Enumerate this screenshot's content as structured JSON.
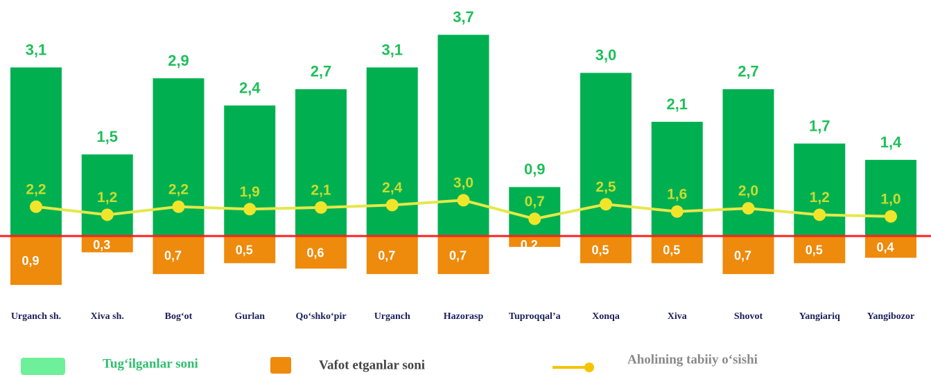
{
  "chart_data": {
    "type": "bar",
    "categories": [
      "Urganch sh.",
      "Xiva sh.",
      "Bog‘ot",
      "Gurlan",
      "Qo‘shko‘pir",
      "Urganch",
      "Hazorasp",
      "Tuproqqal’a",
      "Xonqa",
      "Xiva",
      "Shovot",
      "Yangiariq",
      "Yangibozor"
    ],
    "series": [
      {
        "name": "Tug‘ilganlar soni",
        "color": "#00b050",
        "legend_color": "#6ef09a",
        "legend_text_color": "#2fbf6f",
        "values": [
          3.1,
          1.5,
          2.9,
          2.4,
          2.7,
          3.1,
          3.7,
          0.9,
          3.0,
          2.1,
          2.7,
          1.7,
          1.4
        ],
        "value_labels": [
          "3,1",
          "1,5",
          "2,9",
          "2,4",
          "2,7",
          "3,1",
          "3,7",
          "0,9",
          "3,0",
          "2,1",
          "2,7",
          "1,7",
          "1,4"
        ]
      },
      {
        "name": "Vafot etganlar soni",
        "color": "#ee8a0c",
        "legend_text_color": "#444444",
        "values": [
          0.9,
          0.3,
          0.7,
          0.5,
          0.6,
          0.7,
          0.7,
          0.2,
          0.5,
          0.5,
          0.7,
          0.5,
          0.4
        ],
        "value_labels": [
          "0,9",
          "0,3",
          "0,7",
          "0,5",
          "0,6",
          "0,7",
          "0,7",
          "0,2",
          "0,5",
          "0,5",
          "0,7",
          "0,5",
          "0,4"
        ]
      },
      {
        "name": "Aholining tabiiy o‘sishi",
        "type": "line",
        "axis": "y2",
        "color": "#e4e84a",
        "legend_color": "#f5c400",
        "legend_text_color": "#8a8a8a",
        "values": [
          2.2,
          1.2,
          2.2,
          1.9,
          2.1,
          2.4,
          3.0,
          0.7,
          2.5,
          1.6,
          2.0,
          1.2,
          1.0
        ],
        "value_labels": [
          "2,2",
          "1,2",
          "2,2",
          "1,9",
          "2,1",
          "2,4",
          "3,0",
          "0,7",
          "2,5",
          "1,6",
          "2,0",
          "1,2",
          "1,0"
        ]
      }
    ],
    "ylim": [
      -1.5,
      4.2
    ],
    "y2lim": [
      -11.5,
      26.8
    ],
    "baseline_color": "#ff2020"
  }
}
